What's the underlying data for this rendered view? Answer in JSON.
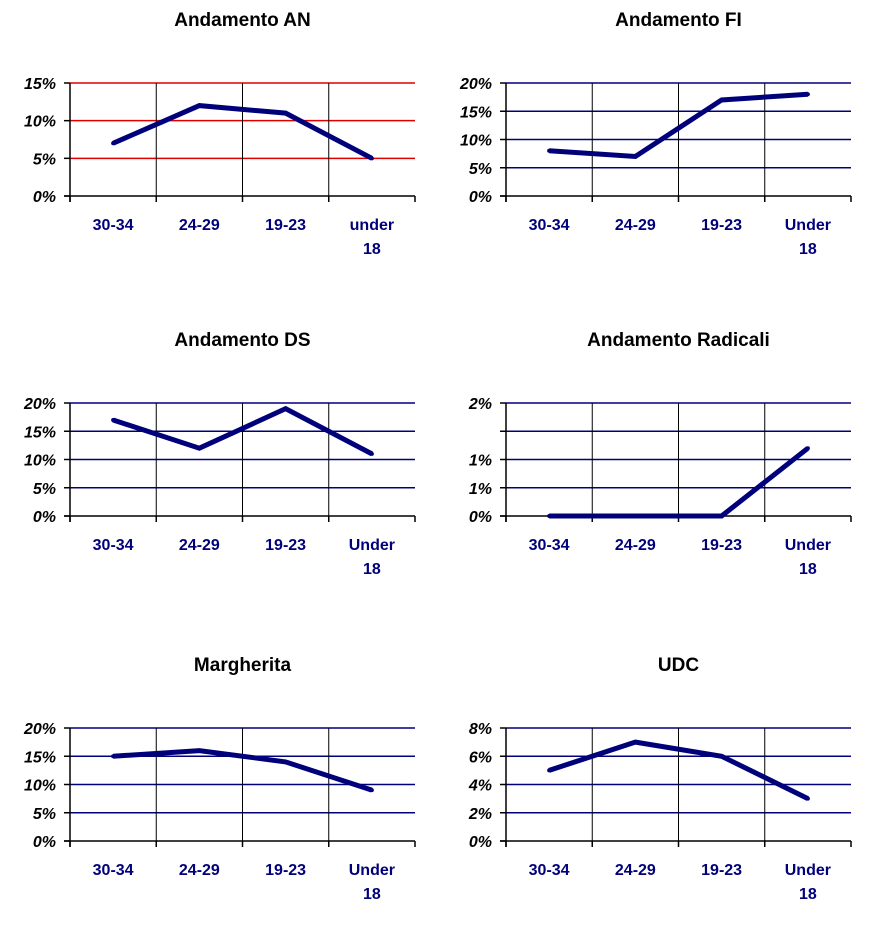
{
  "chart_data": [
    {
      "type": "line",
      "title": "Andamento AN",
      "categories": [
        "30-34",
        "24-29",
        "19-23",
        "under 18"
      ],
      "series": [
        {
          "values": [
            0.07,
            0.12,
            0.11,
            0.05
          ]
        }
      ],
      "ylim": [
        0,
        0.15
      ],
      "yticks": [
        0,
        0.05,
        0.1,
        0.15
      ],
      "ytick_labels": [
        "0%",
        "5%",
        "10%",
        "15%"
      ],
      "grid": true,
      "gridline_color": "#e00000",
      "line_color": "#00007b"
    },
    {
      "type": "line",
      "title": "Andamento FI",
      "categories": [
        "30-34",
        "24-29",
        "19-23",
        "Under 18"
      ],
      "series": [
        {
          "values": [
            0.08,
            0.07,
            0.17,
            0.18
          ]
        }
      ],
      "ylim": [
        0,
        0.2
      ],
      "yticks": [
        0,
        0.05,
        0.1,
        0.15,
        0.2
      ],
      "ytick_labels": [
        "0%",
        "5%",
        "10%",
        "15%",
        "20%"
      ],
      "grid": true,
      "gridline_color": "#00007b",
      "line_color": "#00007b"
    },
    {
      "type": "line",
      "title": "Andamento DS",
      "categories": [
        "30-34",
        "24-29",
        "19-23",
        "Under 18"
      ],
      "series": [
        {
          "values": [
            0.17,
            0.12,
            0.19,
            0.11
          ]
        }
      ],
      "ylim": [
        0,
        0.2
      ],
      "yticks": [
        0,
        0.05,
        0.1,
        0.15,
        0.2
      ],
      "ytick_labels": [
        "0%",
        "5%",
        "10%",
        "15%",
        "20%"
      ],
      "grid": true,
      "gridline_color": "#00007b",
      "line_color": "#00007b"
    },
    {
      "type": "line",
      "title": "Andamento Radicali",
      "categories": [
        "30-34",
        "24-29",
        "19-23",
        "Under 18"
      ],
      "series": [
        {
          "values": [
            0,
            0,
            0,
            0.012
          ]
        }
      ],
      "ylim": [
        0,
        0.02
      ],
      "yticks": [
        0,
        0.005,
        0.01,
        0.015,
        0.02
      ],
      "ytick_labels": [
        "0%",
        "1%",
        "1%",
        "",
        "2%"
      ],
      "grid": true,
      "gridline_color": "#00007b",
      "line_color": "#00007b"
    },
    {
      "type": "line",
      "title": "Margherita",
      "categories": [
        "30-34",
        "24-29",
        "19-23",
        "Under 18"
      ],
      "series": [
        {
          "values": [
            0.15,
            0.16,
            0.14,
            0.09
          ]
        }
      ],
      "ylim": [
        0,
        0.2
      ],
      "yticks": [
        0,
        0.05,
        0.1,
        0.15,
        0.2
      ],
      "ytick_labels": [
        "0%",
        "5%",
        "10%",
        "15%",
        "20%"
      ],
      "grid": true,
      "gridline_color": "#00007b",
      "line_color": "#00007b"
    },
    {
      "type": "line",
      "title": "UDC",
      "categories": [
        "30-34",
        "24-29",
        "19-23",
        "Under 18"
      ],
      "series": [
        {
          "values": [
            0.05,
            0.07,
            0.06,
            0.03
          ]
        }
      ],
      "ylim": [
        0,
        0.08
      ],
      "yticks": [
        0,
        0.02,
        0.04,
        0.06,
        0.08
      ],
      "ytick_labels": [
        "0%",
        "2%",
        "4%",
        "6%",
        "8%"
      ],
      "grid": true,
      "gridline_color": "#00007b",
      "line_color": "#00007b"
    }
  ]
}
